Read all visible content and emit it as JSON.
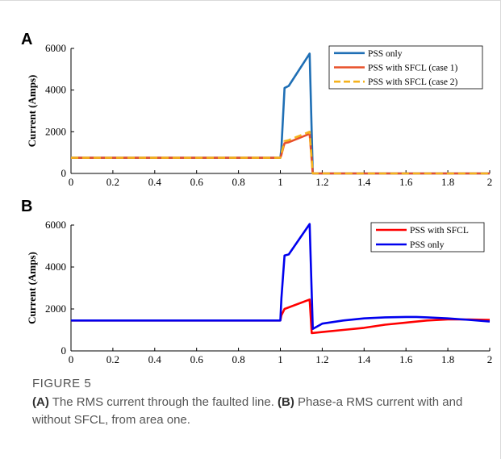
{
  "figure": {
    "label": "FIGURE 5",
    "caption_parts": [
      {
        "bold": true,
        "text": "(A)"
      },
      {
        "bold": false,
        "text": " The RMS current through the faulted line. "
      },
      {
        "bold": true,
        "text": "(B)"
      },
      {
        "bold": false,
        "text": " Phase-a RMS current with and without SFCL, from area one."
      }
    ]
  },
  "colors": {
    "pss_only_a": "#1f6fb5",
    "sfcl_case1": "#e8502a",
    "sfcl_case2": "#f5b21d",
    "sfcl_b": "#ff0000",
    "pss_only_b": "#0000ee"
  },
  "chart_data": [
    {
      "type": "line",
      "panel": "A",
      "ylabel": "Current (Amps)",
      "xlabel": "",
      "xlim": [
        0,
        2
      ],
      "ylim": [
        0,
        6000
      ],
      "xticks": [
        "0",
        "0.2",
        "0.4",
        "0.6",
        "0.8",
        "1",
        "1.2",
        "1.4",
        "1.6",
        "1.8",
        "2"
      ],
      "yticks": [
        "0",
        "2000",
        "4000",
        "6000"
      ],
      "legend_position": "top-right",
      "series": [
        {
          "name": "PSS only",
          "color_key": "pss_only_a",
          "dash": false,
          "x": [
            0,
            1.0,
            1.005,
            1.02,
            1.04,
            1.14,
            1.155,
            1.16,
            2.0
          ],
          "y": [
            750,
            750,
            1200,
            4100,
            4200,
            5750,
            0,
            0,
            0
          ]
        },
        {
          "name": "PSS with SFCL (case 1)",
          "color_key": "sfcl_case1",
          "dash": false,
          "x": [
            0,
            1.0,
            1.005,
            1.02,
            1.04,
            1.14,
            1.155,
            1.16,
            2.0
          ],
          "y": [
            750,
            750,
            900,
            1450,
            1500,
            1900,
            0,
            0,
            0
          ]
        },
        {
          "name": "PSS with SFCL (case 2)",
          "color_key": "sfcl_case2",
          "dash": true,
          "x": [
            0,
            1.0,
            1.005,
            1.02,
            1.04,
            1.14,
            1.155,
            1.16,
            2.0
          ],
          "y": [
            750,
            750,
            950,
            1550,
            1600,
            2000,
            0,
            0,
            0
          ]
        }
      ]
    },
    {
      "type": "line",
      "panel": "B",
      "ylabel": "Current (Amps)",
      "xlabel": "",
      "xlim": [
        0,
        2
      ],
      "ylim": [
        0,
        6000
      ],
      "xticks": [
        "0",
        "0.2",
        "0.4",
        "0.6",
        "0.8",
        "1",
        "1.2",
        "1.4",
        "1.6",
        "1.8",
        "2"
      ],
      "yticks": [
        "0",
        "2000",
        "4000",
        "6000"
      ],
      "legend_position": "top-right",
      "series": [
        {
          "name": "PSS with SFCL",
          "color_key": "sfcl_b",
          "dash": false,
          "x": [
            0,
            1.0,
            1.005,
            1.02,
            1.14,
            1.15,
            1.2,
            1.3,
            1.4,
            1.5,
            1.6,
            1.7,
            1.8,
            1.9,
            2.0
          ],
          "y": [
            1450,
            1450,
            1700,
            2000,
            2450,
            850,
            900,
            1000,
            1100,
            1250,
            1350,
            1450,
            1500,
            1500,
            1480
          ]
        },
        {
          "name": "PSS only",
          "color_key": "pss_only_b",
          "dash": false,
          "x": [
            0,
            1.0,
            1.005,
            1.02,
            1.04,
            1.14,
            1.155,
            1.2,
            1.3,
            1.4,
            1.5,
            1.6,
            1.65,
            1.7,
            1.8,
            1.9,
            2.0
          ],
          "y": [
            1450,
            1450,
            2500,
            4550,
            4600,
            6050,
            1050,
            1300,
            1450,
            1550,
            1600,
            1620,
            1620,
            1600,
            1550,
            1480,
            1400
          ]
        }
      ]
    }
  ]
}
